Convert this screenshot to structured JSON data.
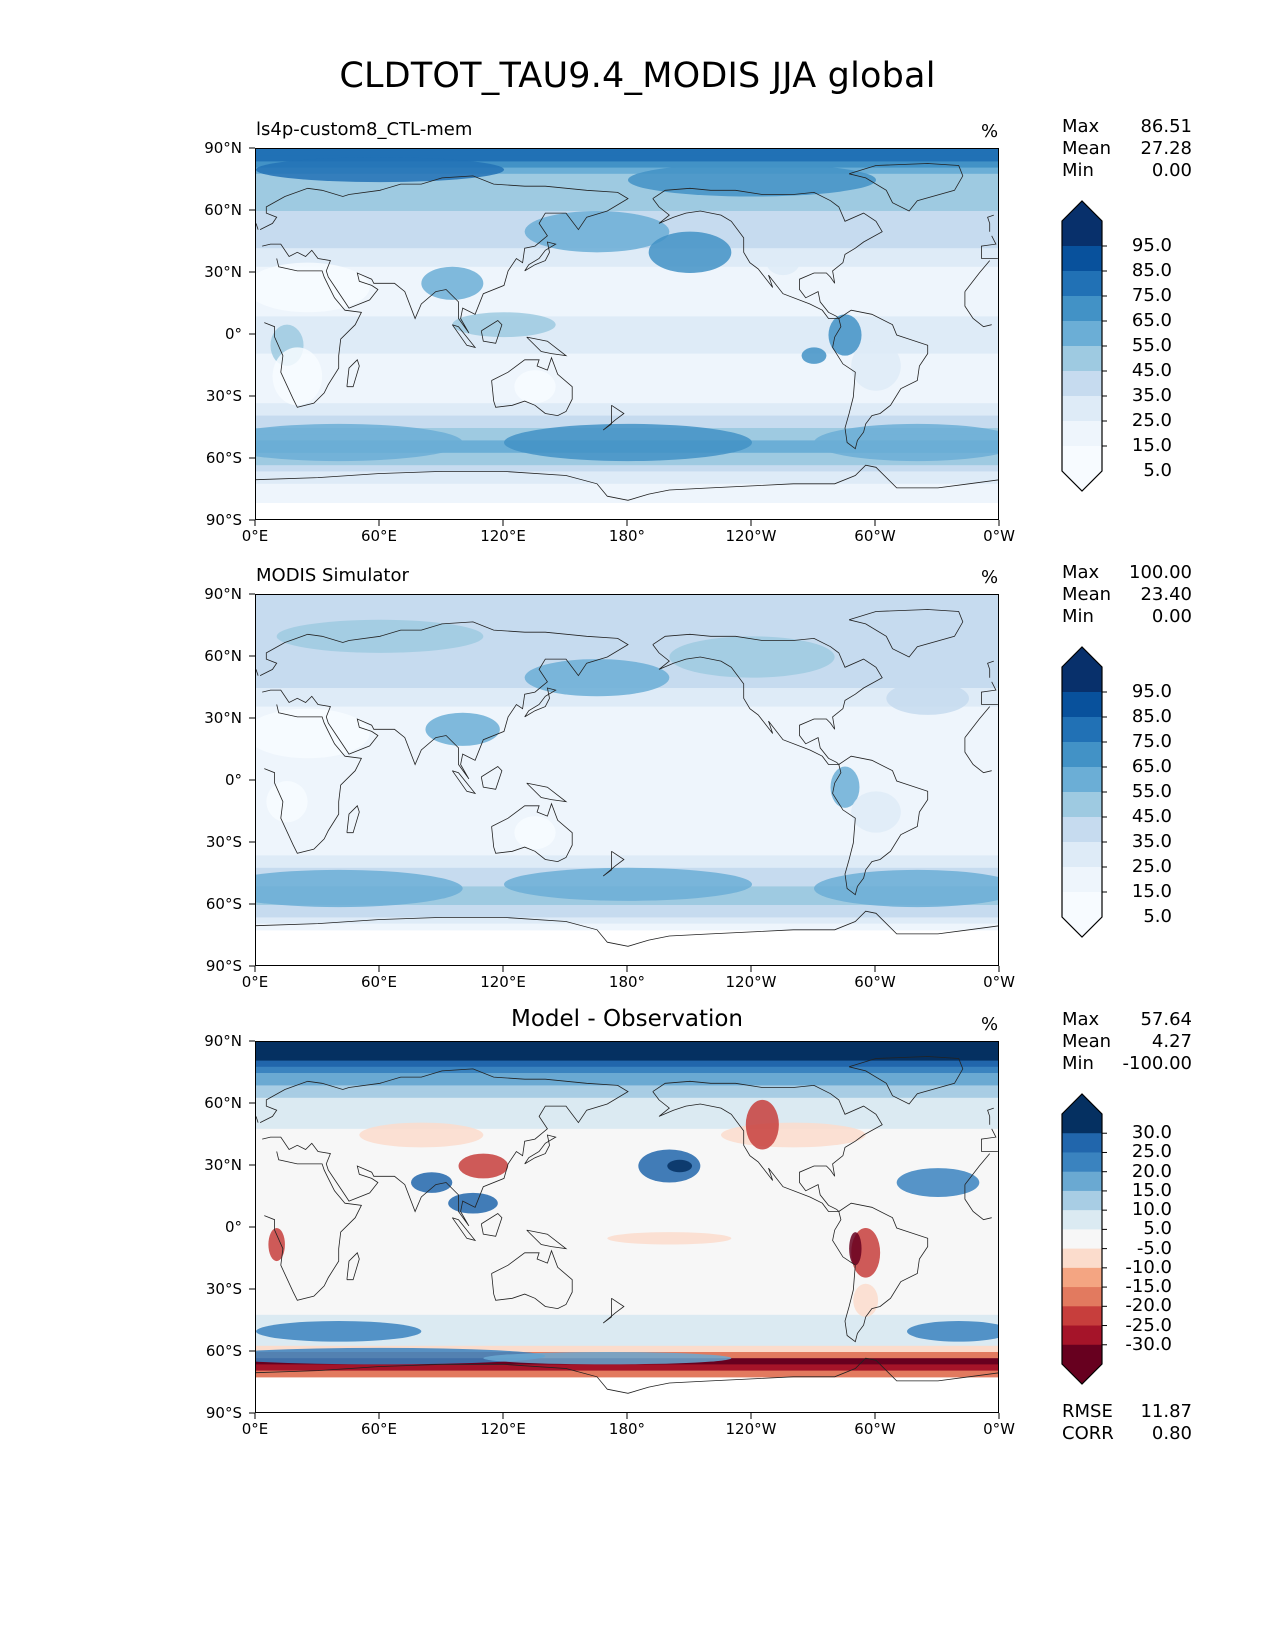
{
  "title": "CLDTOT_TAU9.4_MODIS JJA global",
  "lat_labels": [
    "90°N",
    "60°N",
    "30°N",
    "0°",
    "30°S",
    "60°S",
    "90°S"
  ],
  "lon_labels": [
    "0°E",
    "60°E",
    "120°E",
    "180°",
    "120°W",
    "60°W",
    "0°W"
  ],
  "panels": [
    {
      "title": "ls4p-custom8_CTL-mem",
      "units": "%",
      "stats": {
        "max_label": "Max",
        "max": "86.51",
        "mean_label": "Mean",
        "mean": "27.28",
        "min_label": "Min",
        "min": "0.00"
      },
      "colorbar": {
        "labels": [
          "95.0",
          "85.0",
          "75.0",
          "65.0",
          "55.0",
          "45.0",
          "35.0",
          "25.0",
          "15.0",
          "5.0"
        ],
        "colors": [
          "#08306b",
          "#08519c",
          "#2171b5",
          "#4292c6",
          "#6baed6",
          "#9ecae1",
          "#c6dbef",
          "#deebf7",
          "#eef5fc",
          "#f7fbff"
        ]
      }
    },
    {
      "title": "MODIS Simulator",
      "units": "%",
      "stats": {
        "max_label": "Max",
        "max": "100.00",
        "mean_label": "Mean",
        "mean": "23.40",
        "min_label": "Min",
        "min": "0.00"
      },
      "colorbar": {
        "labels": [
          "95.0",
          "85.0",
          "75.0",
          "65.0",
          "55.0",
          "45.0",
          "35.0",
          "25.0",
          "15.0",
          "5.0"
        ],
        "colors": [
          "#08306b",
          "#08519c",
          "#2171b5",
          "#4292c6",
          "#6baed6",
          "#9ecae1",
          "#c6dbef",
          "#deebf7",
          "#eef5fc",
          "#f7fbff"
        ]
      }
    },
    {
      "title": "Model - Observation",
      "units": "%",
      "stats": {
        "max_label": "Max",
        "max": "57.64",
        "mean_label": "Mean",
        "mean": "4.27",
        "min_label": "Min",
        "min": "-100.00"
      },
      "colorbar": {
        "labels": [
          "30.0",
          "25.0",
          "20.0",
          "15.0",
          "10.0",
          "5.0",
          "-5.0",
          "-10.0",
          "-15.0",
          "-20.0",
          "-25.0",
          "-30.0"
        ],
        "colors": [
          "#053061",
          "#2166ac",
          "#3a83bf",
          "#6aa9d2",
          "#a8cde4",
          "#dbeaf2",
          "#f7f7f7",
          "#fbdccc",
          "#f4a582",
          "#e27a5f",
          "#c73e3c",
          "#a51429",
          "#67001f"
        ]
      },
      "metrics": {
        "rmse_label": "RMSE",
        "rmse": "11.87",
        "corr_label": "CORR",
        "corr": "0.80"
      }
    }
  ],
  "chart_data": [
    {
      "type": "heatmap",
      "title": "ls4p-custom8_CTL-mem",
      "units": "%",
      "x_range": [
        0,
        360
      ],
      "y_range": [
        -90,
        90
      ],
      "x_ticks": [
        "0°E",
        "60°E",
        "120°E",
        "180°",
        "120°W",
        "60°W",
        "0°W"
      ],
      "y_ticks": [
        "90°N",
        "60°N",
        "30°N",
        "0°",
        "30°S",
        "60°S",
        "90°S"
      ],
      "levels": [
        5,
        15,
        25,
        35,
        45,
        55,
        65,
        75,
        85,
        95
      ],
      "zonal_mean_profile": {
        "lat": [
          85,
          75,
          60,
          45,
          30,
          15,
          0,
          -15,
          -30,
          -45,
          -55,
          -65,
          -75
        ],
        "value": [
          75,
          50,
          45,
          40,
          20,
          22,
          28,
          22,
          20,
          45,
          60,
          40,
          15
        ]
      },
      "stats": {
        "max": 86.51,
        "mean": 27.28,
        "min": 0.0
      }
    },
    {
      "type": "heatmap",
      "title": "MODIS Simulator",
      "units": "%",
      "x_range": [
        0,
        360
      ],
      "y_range": [
        -90,
        90
      ],
      "levels": [
        5,
        15,
        25,
        35,
        45,
        55,
        65,
        75,
        85,
        95
      ],
      "zonal_mean_profile": {
        "lat": [
          85,
          75,
          60,
          45,
          30,
          15,
          0,
          -15,
          -30,
          -45,
          -55,
          -65,
          -75
        ],
        "value": [
          40,
          35,
          38,
          35,
          18,
          20,
          25,
          20,
          18,
          40,
          50,
          40,
          0
        ]
      },
      "stats": {
        "max": 100.0,
        "mean": 23.4,
        "min": 0.0
      }
    },
    {
      "type": "heatmap",
      "title": "Model - Observation",
      "units": "%",
      "x_range": [
        0,
        360
      ],
      "y_range": [
        -90,
        90
      ],
      "levels": [
        -30,
        -25,
        -20,
        -15,
        -10,
        -5,
        5,
        10,
        15,
        20,
        25,
        30
      ],
      "zonal_mean_profile": {
        "lat": [
          85,
          75,
          60,
          45,
          30,
          15,
          0,
          -15,
          -30,
          -45,
          -55,
          -65,
          -75
        ],
        "value": [
          40,
          20,
          8,
          4,
          2,
          3,
          3,
          2,
          2,
          6,
          10,
          -35,
          0
        ]
      },
      "stats": {
        "max": 57.64,
        "mean": 4.27,
        "min": -100.0,
        "rmse": 11.87,
        "corr": 0.8
      }
    }
  ]
}
